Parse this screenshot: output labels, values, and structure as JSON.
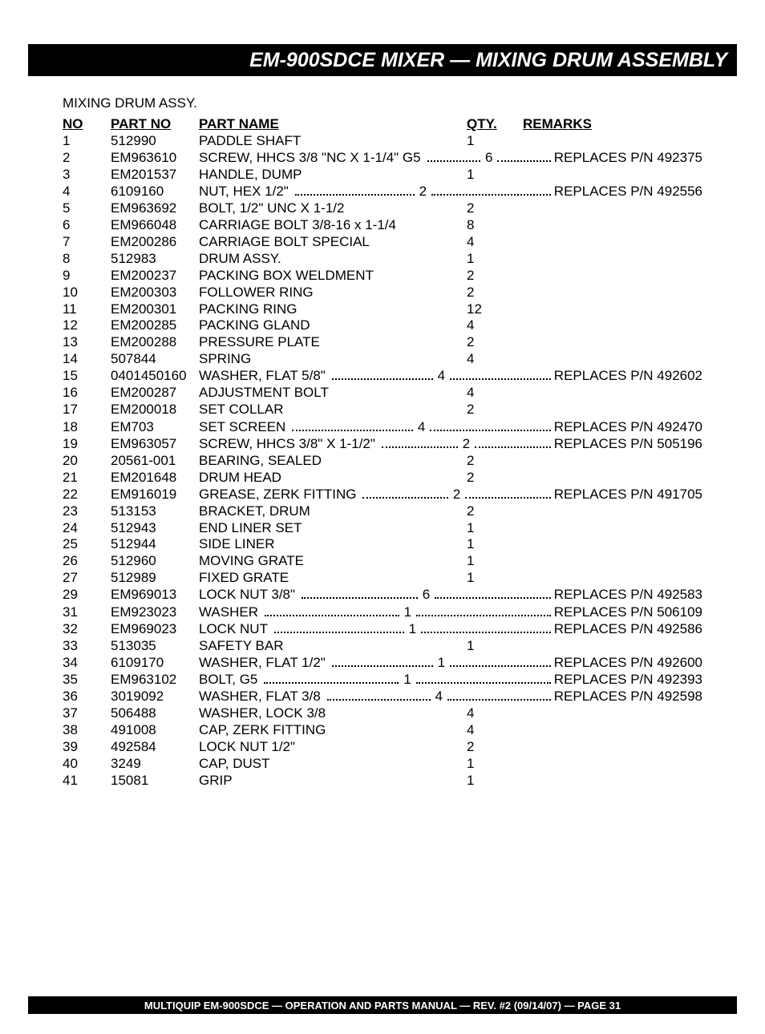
{
  "title": "EM-900SDCE MIXER —  MIXING DRUM  ASSEMBLY",
  "section_label": "MIXING DRUM ASSY.",
  "columns": {
    "no": "NO",
    "part_no": "PART NO",
    "part_name": "PART NAME",
    "qty": "QTY.",
    "remarks": "REMARKS"
  },
  "rows": [
    {
      "no": "1",
      "pn": "512990",
      "name": "PADDLE SHAFT",
      "qty": "1",
      "remarks": ""
    },
    {
      "no": "2",
      "pn": "EM963610",
      "name": "SCREW, HHCS 3/8 \"NC X 1-1/4\" G5",
      "qty": "6",
      "remarks": "REPLACES P/N 492375"
    },
    {
      "no": "3",
      "pn": "EM201537",
      "name": "HANDLE, DUMP",
      "qty": "1",
      "remarks": ""
    },
    {
      "no": "4",
      "pn": "6109160",
      "name": "NUT, HEX 1/2\"",
      "qty": "2",
      "remarks": "REPLACES P/N 492556"
    },
    {
      "no": "5",
      "pn": "EM963692",
      "name": "BOLT, 1/2\" UNC X 1-1/2",
      "qty": "2",
      "remarks": ""
    },
    {
      "no": "6",
      "pn": "EM966048",
      "name": "CARRIAGE BOLT 3/8-16 x 1-1/4",
      "qty": "8",
      "remarks": ""
    },
    {
      "no": "7",
      "pn": "EM200286",
      "name": "CARRIAGE BOLT SPECIAL",
      "qty": "4",
      "remarks": ""
    },
    {
      "no": "8",
      "pn": "512983",
      "name": "DRUM ASSY.",
      "qty": "1",
      "remarks": ""
    },
    {
      "no": "9",
      "pn": "EM200237",
      "name": "PACKING BOX WELDMENT",
      "qty": "2",
      "remarks": ""
    },
    {
      "no": "10",
      "pn": "EM200303",
      "name": "FOLLOWER RING",
      "qty": "2",
      "remarks": ""
    },
    {
      "no": "11",
      "pn": "EM200301",
      "name": "PACKING RING",
      "qty": "12",
      "remarks": ""
    },
    {
      "no": "12",
      "pn": "EM200285",
      "name": "PACKING GLAND",
      "qty": "4",
      "remarks": ""
    },
    {
      "no": "13",
      "pn": "EM200288",
      "name": "PRESSURE PLATE",
      "qty": "2",
      "remarks": ""
    },
    {
      "no": "14",
      "pn": "507844",
      "name": "SPRING",
      "qty": "4",
      "remarks": ""
    },
    {
      "no": "15",
      "pn": "0401450160",
      "name": "WASHER, FLAT 5/8\"",
      "qty": "4",
      "remarks": "REPLACES P/N 492602"
    },
    {
      "no": "16",
      "pn": "EM200287",
      "name": "ADJUSTMENT BOLT",
      "qty": "4",
      "remarks": ""
    },
    {
      "no": "17",
      "pn": "EM200018",
      "name": "SET COLLAR",
      "qty": "2",
      "remarks": ""
    },
    {
      "no": "18",
      "pn": "EM703",
      "name": "SET SCREEN",
      "qty": "4",
      "remarks": "REPLACES P/N 492470"
    },
    {
      "no": "19",
      "pn": "EM963057",
      "name": "SCREW, HHCS 3/8\" X 1-1/2\"",
      "qty": "2",
      "remarks": "REPLACES P/N 505196"
    },
    {
      "no": "20",
      "pn": "20561-001",
      "name": "BEARING, SEALED",
      "qty": "2",
      "remarks": ""
    },
    {
      "no": "21",
      "pn": "EM201648",
      "name": "DRUM HEAD",
      "qty": "2",
      "remarks": ""
    },
    {
      "no": "22",
      "pn": "EM916019",
      "name": "GREASE, ZERK FITTING",
      "qty": "2",
      "remarks": "REPLACES P/N 491705"
    },
    {
      "no": "23",
      "pn": "513153",
      "name": "BRACKET, DRUM",
      "qty": "2",
      "remarks": ""
    },
    {
      "no": "24",
      "pn": "512943",
      "name": "END LINER SET",
      "qty": "1",
      "remarks": ""
    },
    {
      "no": "25",
      "pn": "512944",
      "name": "SIDE LINER",
      "qty": "1",
      "remarks": ""
    },
    {
      "no": "26",
      "pn": "512960",
      "name": "MOVING GRATE",
      "qty": "1",
      "remarks": ""
    },
    {
      "no": "27",
      "pn": "512989",
      "name": "FIXED GRATE",
      "qty": "1",
      "remarks": ""
    },
    {
      "no": "29",
      "pn": "EM969013",
      "name": "LOCK NUT 3/8\"",
      "qty": "6",
      "remarks": "REPLACES  P/N 492583"
    },
    {
      "no": "31",
      "pn": "EM923023",
      "name": "WASHER",
      "qty": "1",
      "remarks": "REPLACES P/N 506109"
    },
    {
      "no": "32",
      "pn": "EM969023",
      "name": "LOCK NUT",
      "qty": "1",
      "remarks": "REPLACES  P/N 492586"
    },
    {
      "no": "33",
      "pn": "513035",
      "name": "SAFETY BAR",
      "qty": "1",
      "remarks": ""
    },
    {
      "no": "34",
      "pn": "6109170",
      "name": "WASHER, FLAT 1/2\"",
      "qty": "1",
      "remarks": "REPLACES P/N 492600"
    },
    {
      "no": "35",
      "pn": "EM963102",
      "name": "BOLT, G5",
      "qty": "1",
      "remarks": "REPLACES P/N 492393"
    },
    {
      "no": "36",
      "pn": "3019092",
      "name": "WASHER, FLAT 3/8",
      "qty": "4",
      "remarks": "REPLACES P/N 492598"
    },
    {
      "no": "37",
      "pn": "506488",
      "name": "WASHER, LOCK 3/8",
      "qty": "4",
      "remarks": ""
    },
    {
      "no": "38",
      "pn": "491008",
      "name": "CAP,  ZERK FITTING",
      "qty": "4",
      "remarks": ""
    },
    {
      "no": "39",
      "pn": "492584",
      "name": "LOCK NUT 1/2\"",
      "qty": "2",
      "remarks": ""
    },
    {
      "no": "40",
      "pn": "3249",
      "name": "CAP, DUST",
      "qty": "1",
      "remarks": ""
    },
    {
      "no": "41",
      "pn": "15081",
      "name": "GRIP",
      "qty": "1",
      "remarks": ""
    }
  ],
  "footer": "MULTIQUIP EM-900SDCE — OPERATION AND PARTS MANUAL — REV. #2 (09/14/07) — PAGE 31",
  "colors": {
    "bar_bg": "#000000",
    "bar_fg": "#ffffff",
    "page_bg": "#ffffff",
    "text": "#000000"
  }
}
